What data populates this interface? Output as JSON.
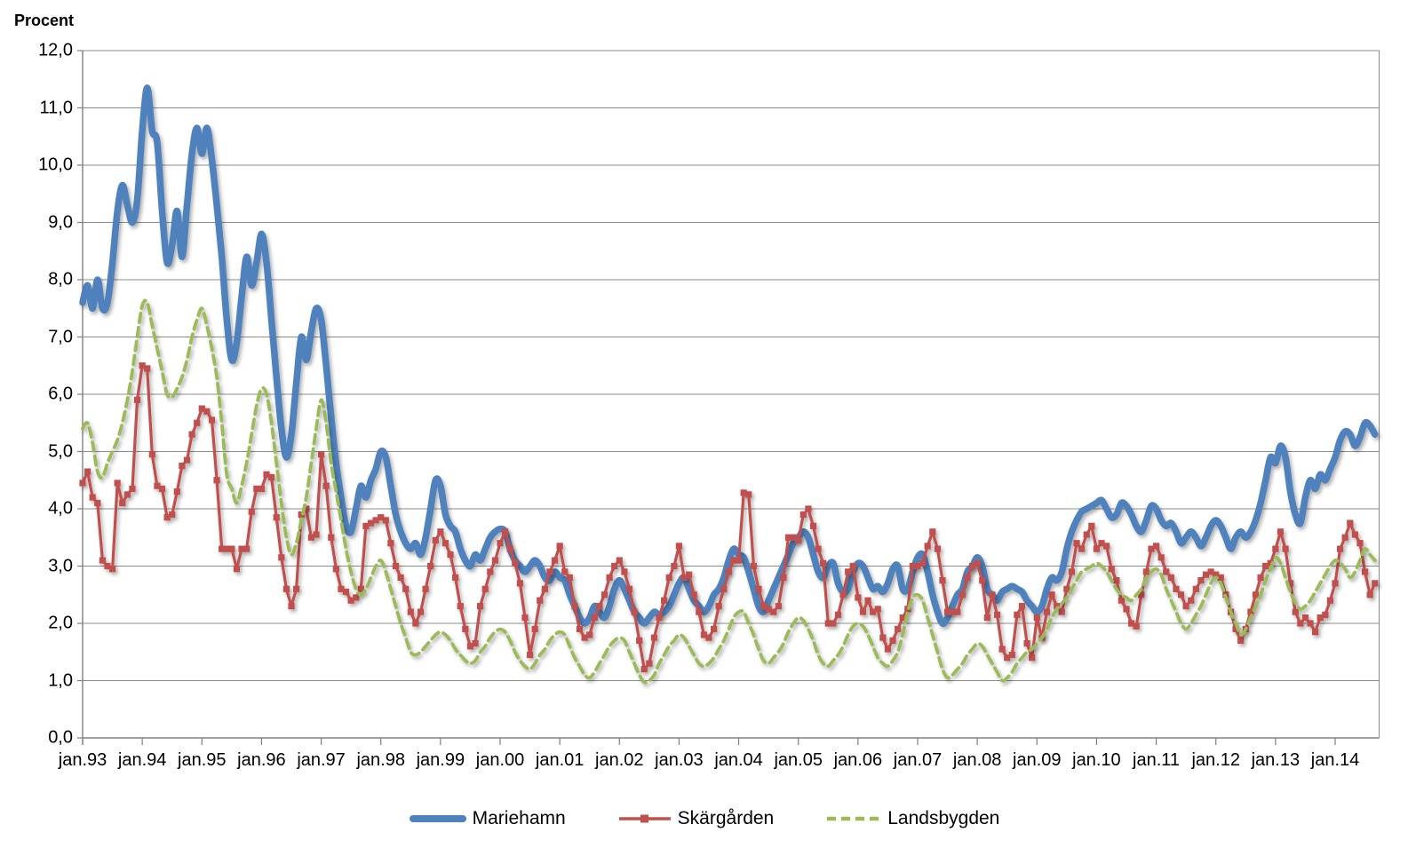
{
  "title": "Procent",
  "colors": {
    "mariehamn": "#4F81BD",
    "skargarden": "#C0504D",
    "landsbygden": "#9BBB59",
    "gridline": "#8C8C8C",
    "axis": "#808080"
  },
  "y_axis": {
    "min": 0,
    "max": 12,
    "step": 1,
    "labels": [
      "12,0",
      "11,0",
      "10,0",
      "9,0",
      "8,0",
      "7,0",
      "6,0",
      "5,0",
      "4,0",
      "3,0",
      "2,0",
      "1,0",
      "0,0"
    ]
  },
  "x_axis": {
    "tick_labels": [
      "jan.93",
      "jan.94",
      "jan.95",
      "jan.96",
      "jan.97",
      "jan.98",
      "jan.99",
      "jan.00",
      "jan.01",
      "jan.02",
      "jan.03",
      "jan.04",
      "jan.05",
      "jan.06",
      "jan.07",
      "jan.08",
      "jan.09",
      "jan.10",
      "jan.11",
      "jan.12",
      "jan.13",
      "jan.14"
    ]
  },
  "legend": {
    "items": [
      "Mariehamn",
      "Skärgården",
      "Landsbygden"
    ]
  },
  "chart_data": {
    "type": "line",
    "title": "Procent",
    "xlabel": "",
    "ylabel": "Procent",
    "ylim": [
      0,
      12
    ],
    "grid": true,
    "legend_position": "bottom",
    "x_start": "1993-01",
    "x_end": "2014-09",
    "x_step_months": 1,
    "x_tick_labels": [
      "jan.93",
      "jan.94",
      "jan.95",
      "jan.96",
      "jan.97",
      "jan.98",
      "jan.99",
      "jan.00",
      "jan.01",
      "jan.02",
      "jan.03",
      "jan.04",
      "jan.05",
      "jan.06",
      "jan.07",
      "jan.08",
      "jan.09",
      "jan.10",
      "jan.11",
      "jan.12",
      "jan.13",
      "jan.14"
    ],
    "series": [
      {
        "name": "Mariehamn",
        "color": "#4F81BD",
        "line_style": "solid",
        "line_width": 7.5,
        "marker": "none",
        "smooth": true,
        "values": [
          7.6,
          7.9,
          7.5,
          8.0,
          7.5,
          7.6,
          8.3,
          9.2,
          9.65,
          9.3,
          9.0,
          9.4,
          10.6,
          11.35,
          10.6,
          10.4,
          9.2,
          8.3,
          8.6,
          9.2,
          8.4,
          9.3,
          10.2,
          10.65,
          10.2,
          10.65,
          10.1,
          9.3,
          8.4,
          7.3,
          6.6,
          6.9,
          7.7,
          8.4,
          7.9,
          8.3,
          8.8,
          8.3,
          7.3,
          6.3,
          5.4,
          4.9,
          5.3,
          6.2,
          7.0,
          6.6,
          7.1,
          7.5,
          7.3,
          6.5,
          5.6,
          4.8,
          4.2,
          3.7,
          3.6,
          4.0,
          4.4,
          4.2,
          4.5,
          4.7,
          5.0,
          4.9,
          4.4,
          3.9,
          3.6,
          3.4,
          3.3,
          3.4,
          3.2,
          3.5,
          4.0,
          4.5,
          4.4,
          3.9,
          3.7,
          3.6,
          3.3,
          3.1,
          3.0,
          3.2,
          3.1,
          3.3,
          3.5,
          3.6,
          3.65,
          3.6,
          3.3,
          3.1,
          3.0,
          2.9,
          3.0,
          3.1,
          3.0,
          2.8,
          2.75,
          2.9,
          2.8,
          2.75,
          2.5,
          2.3,
          2.1,
          2.0,
          2.1,
          2.3,
          2.2,
          2.1,
          2.3,
          2.6,
          2.75,
          2.6,
          2.4,
          2.2,
          2.1,
          2.0,
          2.1,
          2.2,
          2.15,
          2.2,
          2.3,
          2.5,
          2.7,
          2.8,
          2.6,
          2.4,
          2.3,
          2.2,
          2.3,
          2.5,
          2.6,
          2.8,
          3.1,
          3.3,
          3.2,
          3.15,
          2.9,
          2.6,
          2.3,
          2.2,
          2.4,
          2.6,
          2.8,
          3.0,
          3.2,
          3.4,
          3.5,
          3.6,
          3.5,
          3.2,
          2.9,
          2.8,
          3.0,
          3.05,
          2.7,
          2.55,
          2.6,
          2.9,
          3.05,
          3.0,
          2.8,
          2.6,
          2.65,
          2.55,
          2.7,
          2.95,
          3.0,
          2.6,
          2.6,
          2.9,
          3.15,
          3.2,
          2.9,
          2.5,
          2.2,
          2.0,
          2.1,
          2.3,
          2.5,
          2.6,
          2.9,
          3.0,
          3.15,
          3.0,
          2.6,
          2.5,
          2.4,
          2.55,
          2.6,
          2.65,
          2.6,
          2.55,
          2.4,
          2.3,
          2.2,
          2.3,
          2.6,
          2.8,
          2.75,
          2.9,
          3.3,
          3.6,
          3.8,
          3.95,
          4.0,
          4.05,
          4.1,
          4.15,
          4.0,
          3.85,
          3.9,
          4.1,
          4.05,
          3.9,
          3.7,
          3.6,
          3.8,
          4.05,
          4.0,
          3.8,
          3.7,
          3.75,
          3.6,
          3.4,
          3.5,
          3.6,
          3.5,
          3.35,
          3.5,
          3.7,
          3.8,
          3.7,
          3.5,
          3.3,
          3.5,
          3.6,
          3.5,
          3.6,
          3.8,
          4.1,
          4.5,
          4.9,
          4.8,
          5.1,
          4.9,
          4.3,
          3.9,
          3.75,
          4.2,
          4.5,
          4.35,
          4.6,
          4.5,
          4.7,
          4.9,
          5.2,
          5.35,
          5.3,
          5.1,
          5.25,
          5.5,
          5.45,
          5.3
        ]
      },
      {
        "name": "Skärgården",
        "color": "#C0504D",
        "line_style": "solid",
        "line_width": 3.2,
        "marker": "square",
        "smooth": false,
        "values": [
          4.45,
          4.65,
          4.2,
          4.1,
          3.1,
          3.0,
          2.95,
          4.45,
          4.1,
          4.25,
          4.35,
          5.9,
          6.5,
          6.45,
          4.95,
          4.4,
          4.35,
          3.85,
          3.9,
          4.3,
          4.75,
          4.85,
          5.3,
          5.5,
          5.75,
          5.7,
          5.55,
          4.5,
          3.3,
          3.3,
          3.3,
          2.95,
          3.3,
          3.3,
          3.95,
          4.35,
          4.35,
          4.6,
          4.55,
          3.85,
          3.15,
          2.6,
          2.3,
          2.6,
          3.9,
          4.0,
          3.5,
          3.55,
          4.95,
          4.4,
          3.5,
          2.95,
          2.6,
          2.55,
          2.4,
          2.45,
          2.6,
          3.7,
          3.75,
          3.8,
          3.85,
          3.8,
          3.4,
          3.0,
          2.8,
          2.6,
          2.2,
          2.0,
          2.2,
          2.6,
          3.0,
          3.45,
          3.6,
          3.4,
          3.2,
          2.8,
          2.3,
          1.9,
          1.6,
          1.65,
          2.3,
          2.6,
          2.9,
          3.1,
          3.4,
          3.6,
          3.3,
          3.05,
          2.7,
          2.1,
          1.45,
          1.9,
          2.4,
          2.6,
          2.9,
          3.1,
          3.35,
          2.9,
          2.8,
          2.3,
          1.9,
          1.75,
          1.8,
          2.1,
          2.3,
          2.5,
          2.8,
          3.0,
          3.1,
          2.9,
          2.6,
          2.2,
          1.7,
          1.2,
          1.3,
          1.75,
          2.1,
          2.4,
          2.8,
          3.0,
          3.35,
          2.8,
          2.85,
          2.5,
          2.2,
          1.8,
          1.75,
          1.9,
          2.3,
          2.6,
          2.9,
          3.1,
          3.1,
          4.28,
          4.25,
          3.0,
          2.6,
          2.3,
          2.25,
          2.2,
          2.3,
          2.8,
          3.5,
          3.5,
          3.45,
          3.9,
          4.0,
          3.7,
          3.3,
          3.05,
          2.0,
          2.0,
          2.15,
          2.5,
          2.9,
          3.0,
          2.45,
          2.2,
          2.4,
          2.2,
          2.25,
          1.75,
          1.55,
          1.7,
          1.9,
          2.1,
          2.25,
          3.0,
          3.0,
          3.05,
          3.35,
          3.6,
          3.3,
          2.75,
          2.2,
          2.2,
          2.2,
          2.5,
          2.8,
          3.0,
          3.05,
          2.75,
          2.1,
          2.5,
          2.15,
          1.55,
          1.4,
          1.45,
          2.15,
          2.3,
          1.65,
          1.4,
          2.1,
          1.75,
          2.2,
          2.5,
          2.3,
          2.2,
          2.6,
          2.9,
          3.4,
          3.3,
          3.55,
          3.7,
          3.3,
          3.4,
          3.35,
          2.95,
          2.75,
          2.4,
          2.25,
          2.0,
          1.95,
          2.5,
          2.9,
          3.3,
          3.35,
          3.15,
          2.9,
          2.8,
          2.6,
          2.5,
          2.3,
          2.4,
          2.6,
          2.75,
          2.85,
          2.9,
          2.85,
          2.8,
          2.5,
          2.2,
          1.9,
          1.7,
          1.9,
          2.2,
          2.5,
          2.8,
          3.0,
          3.05,
          3.3,
          3.6,
          3.3,
          2.7,
          2.2,
          2.0,
          2.1,
          2.0,
          1.85,
          2.1,
          2.15,
          2.4,
          2.7,
          3.3,
          3.5,
          3.75,
          3.55,
          3.4,
          2.9,
          2.5,
          2.7
        ]
      },
      {
        "name": "Landsbygden",
        "color": "#9BBB59",
        "line_style": "dashed",
        "line_width": 3.8,
        "marker": "none",
        "smooth": true,
        "values": [
          5.4,
          5.5,
          5.15,
          4.65,
          4.55,
          4.8,
          5.0,
          5.2,
          5.5,
          5.9,
          6.4,
          7.0,
          7.55,
          7.6,
          7.2,
          6.8,
          6.4,
          6.0,
          5.95,
          6.1,
          6.3,
          6.6,
          7.0,
          7.3,
          7.5,
          7.2,
          6.8,
          6.3,
          5.5,
          4.6,
          4.35,
          4.1,
          4.4,
          4.8,
          5.3,
          5.8,
          6.1,
          6.0,
          5.5,
          4.8,
          4.1,
          3.5,
          3.2,
          3.4,
          3.8,
          4.2,
          4.8,
          5.4,
          5.9,
          5.5,
          4.8,
          4.3,
          3.8,
          3.3,
          2.9,
          2.6,
          2.5,
          2.6,
          2.8,
          3.0,
          3.1,
          2.9,
          2.6,
          2.3,
          2.0,
          1.75,
          1.5,
          1.45,
          1.5,
          1.6,
          1.7,
          1.8,
          1.85,
          1.8,
          1.7,
          1.55,
          1.45,
          1.35,
          1.3,
          1.35,
          1.5,
          1.6,
          1.75,
          1.85,
          1.9,
          1.85,
          1.7,
          1.5,
          1.35,
          1.25,
          1.2,
          1.3,
          1.45,
          1.55,
          1.7,
          1.8,
          1.85,
          1.8,
          1.6,
          1.4,
          1.25,
          1.1,
          1.05,
          1.15,
          1.3,
          1.45,
          1.6,
          1.7,
          1.75,
          1.7,
          1.5,
          1.3,
          1.1,
          0.97,
          1.0,
          1.1,
          1.3,
          1.45,
          1.6,
          1.7,
          1.8,
          1.75,
          1.6,
          1.45,
          1.3,
          1.25,
          1.3,
          1.4,
          1.55,
          1.7,
          1.9,
          2.1,
          2.2,
          2.2,
          2.0,
          1.8,
          1.55,
          1.35,
          1.3,
          1.4,
          1.5,
          1.65,
          1.85,
          2.0,
          2.1,
          2.05,
          1.9,
          1.7,
          1.45,
          1.3,
          1.25,
          1.35,
          1.45,
          1.6,
          1.8,
          1.95,
          2.0,
          1.95,
          1.8,
          1.6,
          1.4,
          1.3,
          1.25,
          1.35,
          1.5,
          1.8,
          2.2,
          2.45,
          2.5,
          2.4,
          2.1,
          1.8,
          1.5,
          1.2,
          1.05,
          1.1,
          1.2,
          1.3,
          1.45,
          1.55,
          1.65,
          1.6,
          1.45,
          1.3,
          1.15,
          1.0,
          1.05,
          1.15,
          1.3,
          1.4,
          1.5,
          1.55,
          1.65,
          1.75,
          1.9,
          2.1,
          2.25,
          2.35,
          2.45,
          2.6,
          2.75,
          2.9,
          2.95,
          3.0,
          3.05,
          3.0,
          2.9,
          2.75,
          2.6,
          2.5,
          2.45,
          2.4,
          2.5,
          2.6,
          2.8,
          2.9,
          2.95,
          2.85,
          2.6,
          2.4,
          2.2,
          2.0,
          1.9,
          2.0,
          2.15,
          2.3,
          2.5,
          2.7,
          2.8,
          2.7,
          2.45,
          2.2,
          2.0,
          1.8,
          1.9,
          2.1,
          2.3,
          2.5,
          2.75,
          2.95,
          3.15,
          3.05,
          2.8,
          2.55,
          2.35,
          2.25,
          2.3,
          2.4,
          2.55,
          2.7,
          2.85,
          3.0,
          3.1,
          3.05,
          2.95,
          2.8,
          2.9,
          3.1,
          3.3,
          3.2,
          3.1
        ]
      }
    ]
  }
}
